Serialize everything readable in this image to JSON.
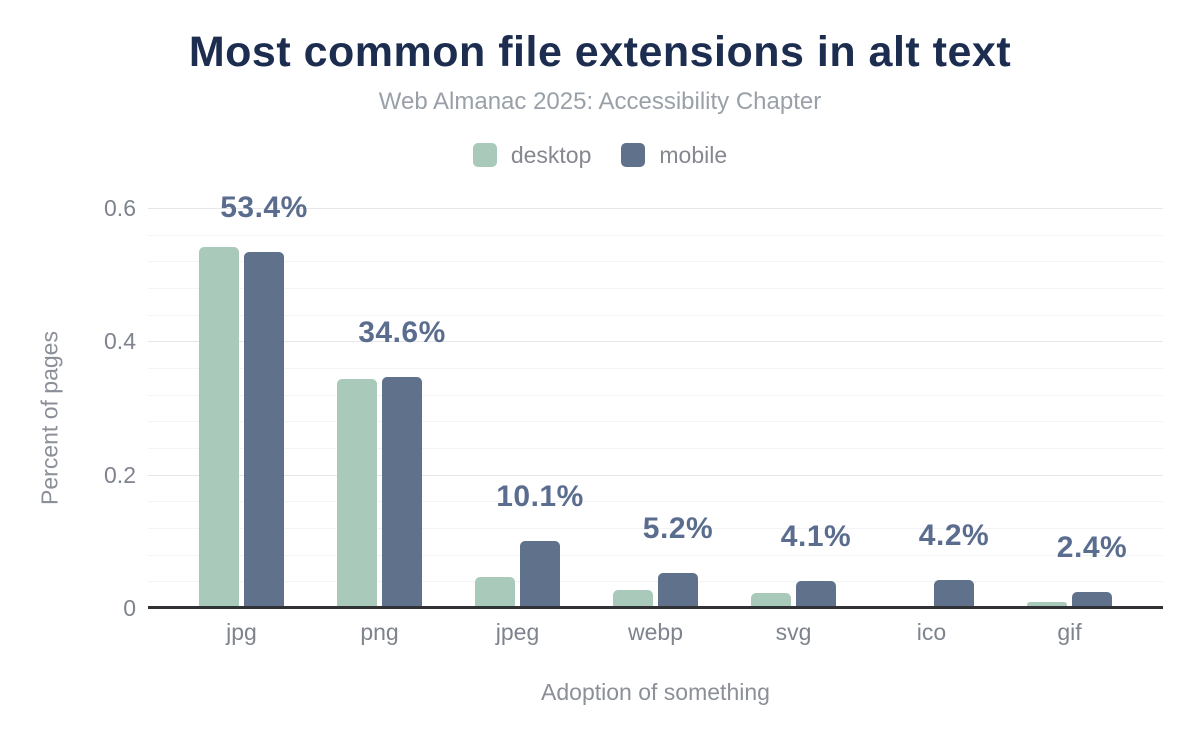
{
  "chart_data": {
    "type": "bar",
    "title": "Most common file extensions in alt text",
    "subtitle": "Web Almanac 2025: Accessibility Chapter",
    "xlabel": "Adoption of something",
    "ylabel": "Percent of pages",
    "categories": [
      "jpg",
      "png",
      "jpeg",
      "webp",
      "svg",
      "ico",
      "gif"
    ],
    "series": [
      {
        "name": "desktop",
        "color": "#a9c9ba",
        "values": [
          0.542,
          0.343,
          0.047,
          0.027,
          0.023,
          0.0,
          0.009
        ]
      },
      {
        "name": "mobile",
        "color": "#60718c",
        "values": [
          0.534,
          0.346,
          0.101,
          0.052,
          0.041,
          0.042,
          0.024
        ]
      }
    ],
    "data_labels": [
      "53.4%",
      "34.6%",
      "10.1%",
      "5.2%",
      "4.1%",
      "4.2%",
      "2.4%"
    ],
    "ylim": [
      0,
      0.6
    ],
    "yticks": [
      0,
      0.2,
      0.4,
      0.6
    ],
    "ytick_labels": [
      "0",
      "0.2",
      "0.4",
      "0.6"
    ],
    "minor_grid_step": 0.04,
    "grid": "horizontal",
    "legend_position": "top"
  },
  "colors": {
    "title": "#1c2d50",
    "subtitle": "#9aa0a8",
    "axis_text": "#7e838d",
    "data_label": "#5b6d8e",
    "axis_line": "#303236",
    "desktop_series": "#a9c9ba",
    "mobile_series": "#60718c"
  }
}
